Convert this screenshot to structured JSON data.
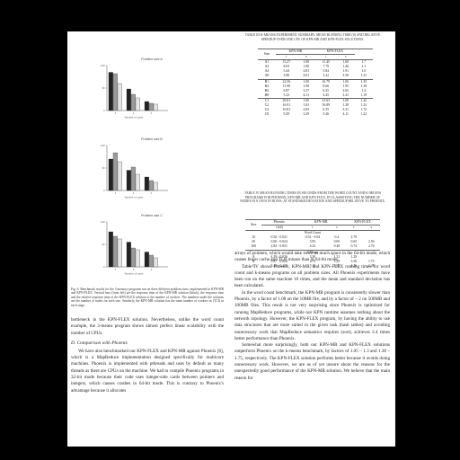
{
  "figure": {
    "caption": "Fig. 6. Benchmark results for the 3 memory programs run on three different problem sizes, implemented in KPN-MR and KPN-FLEX. Vertical bars (from left) are the response time of the KPN-MR solution (black), the response time and the relative response time of the KPN-FLEX solution to the number of workers. The numbers under the columns are the number of nodes for each size. Similarly, the KPN-MR solution has the same number of workers as (TCI) in each stage.",
    "charts": [
      {
        "title": "Problem size A",
        "xlabel": "Number of cores",
        "ylabel": ""
      },
      {
        "title": "Problem size B",
        "xlabel": "Number of cores",
        "ylabel": ""
      },
      {
        "title": "Problem size C",
        "xlabel": "Number of cores",
        "ylabel": ""
      }
    ]
  },
  "chart_data": [
    {
      "type": "bar",
      "categories": [
        "1",
        "2",
        "4"
      ],
      "series": [
        {
          "values": [
            85,
            48,
            20
          ]
        },
        {
          "values": [
            82,
            36,
            16
          ]
        },
        {
          "values": [
            60,
            28,
            14
          ]
        }
      ],
      "ylim": [
        0,
        100
      ]
    },
    {
      "type": "bar",
      "categories": [
        "1",
        "2",
        "4"
      ],
      "series": [
        {
          "values": [
            70,
            45,
            30
          ]
        },
        {
          "values": [
            84,
            52,
            22
          ]
        },
        {
          "values": [
            64,
            36,
            18
          ]
        }
      ],
      "ylim": [
        0,
        100
      ]
    },
    {
      "type": "bar",
      "categories": [
        "1",
        "2",
        "4"
      ],
      "series": [
        {
          "values": [
            78,
            55,
            33
          ]
        },
        {
          "values": [
            68,
            42,
            26
          ]
        },
        {
          "values": [
            62,
            38,
            20
          ]
        }
      ],
      "ylim": [
        0,
        100
      ]
    }
  ],
  "left_text": {
    "para1": "bottleneck in the KPN-FLEX solution. Nevertheless, unlike the word count example, the 3-means program shows almost perfect linear scalability with the number of CPUs.",
    "heading": "D. Comparison with Phoenix",
    "para2": "We have also benchmarked our KPN-FLEX and KPN-MR against Phoenix [6], which is a MapReduce implementation designed specifically for multicore machines. Phoenix is implemented with pthreads and uses by default as many threads as there are CPUs on the machine. We had to compile Phoenix programs in 32-bit mode because their code uses integer-side cards between pointers and integers, which causes crashes in 64-bit mode. This is contrary to Phoenix's advantage because it allocates"
  },
  "right_text": {
    "para1": "arrays of pointers, which would take twice as much space in the 64-bit mode, which causes fewer cache and TLB misses than in 64-bit mode.",
    "para2": "Table IV shows Phoenix, KPN-MR, and KPN-FLEX running times for word count and k-means programs on all problem sizes. All Phoenix experiments have been run on the same machine 10 times, and the mean and standard deviation has been calculated.",
    "para3": "In the word count benchmark, the KPN-MR program is consistently slower than Phoenix, by a factor of 1.08 on the 10MB file, and by a factor of ~ 2 on 500MB and 100MB files. This result is not very surprising since Phoenix is optimized for running MapReduce programs, while our KPN runtime assumes nothing about the network topology. However, the KPN-FLEX program, by having the ability to use data structures that are more suited to the given task (hash tables) and avoiding unnecessary work that MapReduce semantics requires (sort), achieves 2.4 times better performance than Phoenix.",
    "para4": "Somewhat more surprisingly, both our KPN-MR and KPN-FLEX solutions outperform Phoenix on the k-means benchmark, by factors of 1.05 – 1.3 and 1.38 – 1.75, respectively. The KPN-FLEX solution performs better because it avoids doing unnecessary work. However, we are as of yet unsure about the reasons for the unexpectedly good performance of the KPN-MR solution. We believe that the main reason for"
  },
  "table3": {
    "caption": "TABLE III K-MEANS EXPERIMENT SUMMARY. MEAN RUNNING TIME (S) AND RELATIVE SPEEDUP OVER ONE CPU OF KPN-MR AND KPN-FLEX SOLUTIONS.",
    "headers": {
      "size": "Size",
      "mr": "KPN-MR",
      "flex": "KPN-FLEX",
      "t": "t",
      "s": "s"
    },
    "groups": [
      {
        "rows": [
          [
            "A1",
            "15.27",
            "1.00",
            "11.45",
            "1.00",
            "1.7"
          ],
          [
            "A2",
            "8.03",
            "1.90",
            "7.79",
            "1.46",
            "1.1"
          ],
          [
            "A4",
            "5.44",
            "2.81",
            "5.84",
            "1.91",
            "1.0"
          ],
          [
            "A8",
            "3.80",
            "4.01",
            "3.22",
            "3.56",
            "1.21"
          ]
        ]
      },
      {
        "rows": [
          [
            "B1",
            "22.56",
            "1.00",
            "16.79",
            "1.00",
            "1.35"
          ],
          [
            "B2",
            "11.90",
            "1.90",
            "8.60",
            "1.95",
            "1.39"
          ],
          [
            "B4",
            "6.87",
            "3.27",
            "6.35",
            "2.65",
            "1.4"
          ],
          [
            "B8",
            "5.23",
            "4.31",
            "4.45",
            "3.41",
            "1.19"
          ]
        ]
      },
      {
        "rows": [
          [
            "C1",
            "30.61",
            "1.00",
            "21.63",
            "1.00",
            "1.42"
          ],
          [
            "C2",
            "16.91",
            "1.81",
            "16.89",
            "1.28",
            "1.23"
          ],
          [
            "C4",
            "10.81",
            "2.83",
            "6.35",
            "3.41",
            "1.72"
          ],
          [
            "C8",
            "9.29",
            "3.29",
            "5.26",
            "4.11",
            "1.22"
          ]
        ]
      }
    ]
  },
  "table4": {
    "caption": "TABLE IV MEAN RUNNING TIMES IN SECONDS FROM THE WORD COUNT AND K-MEANS PROGRAMS FOR PHOENIX, KPN-MR AND KPN-FLEX, IN CLASSIFYING THE NUMBER OF NODES IN 8 CPUS IN ROWS: AT STANDARD DEVIATION AND SPEEDUP RELATIVE TO PHOENIX.",
    "headers": {
      "size": "Size",
      "phoenix": "Phoenix",
      "mr": "KPN-MR",
      "flex": "KPN-FLEX",
      "t_sd": "t (sd)",
      "t": "t",
      "s": "s"
    },
    "section1": "Word Count",
    "rows1": [
      [
        "10",
        "0.50 - 0.021",
        "0.52 - 0.04",
        "0.4",
        "2.70"
      ],
      [
        "50",
        "0.00 - 0.024",
        "3.95",
        "0.00",
        "0.65",
        "2.56"
      ],
      [
        "100",
        "2.84 - 0.051",
        "4.23",
        "0.49",
        "0.74",
        "2.76"
      ]
    ],
    "section2": "k-Means",
    "rows2": [
      [
        "A",
        "4.29 - 0.026",
        "3.30",
        "1.31",
        "1.29"
      ],
      [
        "B",
        "5.87 - 0.024",
        "4.73",
        "1.25",
        "3.56",
        "1.75"
      ],
      [
        "C",
        "5.43 - 0.229",
        "5.19",
        "1.05",
        "4.26",
        "1.28"
      ]
    ]
  }
}
